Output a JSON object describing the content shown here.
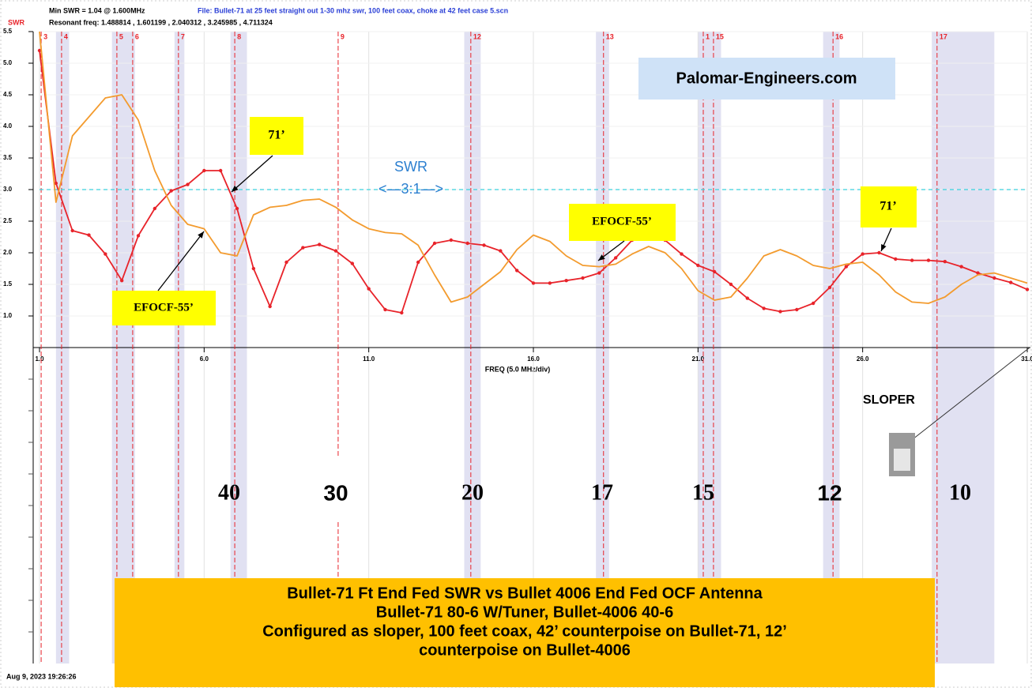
{
  "chart_data": {
    "type": "line",
    "min_swr": "Min SWR =  1.04 @  1.600MHz",
    "file": "File: Bullet-71 at 25 feet straight out 1-30 mhz swr, 100 feet coax, choke at 42 feet case 5.scn",
    "resonant": "Resonant freq:  1.488814 , 1.601199 , 2.040312 , 3.245985 , 4.711324",
    "y_label": "SWR",
    "x_label": "FREQ (5.0 MHz/div)",
    "timestamp": "Aug 9, 2023  19:26:26",
    "title_lines": [
      "Bullet-71 Ft End Fed SWR vs Bullet 4006 End Fed OCF Antenna",
      "Bullet-71 80-6 W/Tuner, Bullet-4006 40-6",
      "Configured as sloper, 100 feet coax, 42’ counterpoise on Bullet-71, 12’",
      "counterpoise on Bullet-4006"
    ],
    "annotations": [
      "Palomar-Engineers.com",
      "SWR",
      "<—3:1—>",
      "71’",
      "EFOCF-55’",
      "EFOCF-55’",
      "71’",
      "SLOPER"
    ],
    "band_labels": [
      "40",
      "30",
      "20",
      "17",
      "15",
      "12",
      "10"
    ],
    "xlim": [
      1,
      31
    ],
    "ylim": [
      0.5,
      5.5
    ],
    "xticks": [
      {
        "value": 1,
        "label": "1.0"
      },
      {
        "value": 6,
        "label": "6.0"
      },
      {
        "value": 11,
        "label": "11.0"
      },
      {
        "value": 16,
        "label": "16.0"
      },
      {
        "value": 21,
        "label": "21.0"
      },
      {
        "value": 26,
        "label": "26.0"
      },
      {
        "value": 31,
        "label": "31.0"
      }
    ],
    "yticks": [
      {
        "value": 1,
        "label": "1.0"
      },
      1.5,
      {
        "value": 2,
        "label": "2.0"
      },
      2.5,
      {
        "value": 3,
        "label": "3.0"
      },
      3.5,
      {
        "value": 4,
        "label": "4.0"
      },
      4.5,
      {
        "value": 5,
        "label": "5.0"
      },
      5.5
    ],
    "grid": true,
    "reference_line": 3,
    "markers": [
      {
        "label": "3",
        "x": 1.05
      },
      {
        "label": "4",
        "x": 1.67
      },
      {
        "label": "5",
        "x": 3.35
      },
      {
        "label": "6",
        "x": 3.83
      },
      {
        "label": "7",
        "x": 5.22
      },
      {
        "label": "8",
        "x": 6.93
      },
      {
        "label": "9",
        "x": 10.07
      },
      {
        "label": "12",
        "x": 14.1
      },
      {
        "label": "13",
        "x": 18.13
      },
      {
        "label": "1",
        "x": 21.16
      },
      {
        "label": "15",
        "x": 21.47
      },
      {
        "label": "16",
        "x": 25.1
      },
      {
        "label": "17",
        "x": 28.26
      }
    ],
    "shaded_ranges": [
      [
        1.5,
        1.9
      ],
      [
        3.2,
        3.9
      ],
      [
        5.1,
        5.4
      ],
      [
        6.8,
        7.3
      ],
      [
        13.9,
        14.4
      ],
      [
        17.9,
        18.3
      ],
      [
        21.0,
        21.7
      ],
      [
        24.8,
        25.3
      ],
      [
        28.1,
        30.0
      ]
    ],
    "x": [
      1,
      1.5,
      2,
      2.5,
      3,
      3.5,
      4,
      4.5,
      5,
      5.5,
      6,
      6.5,
      7,
      7.5,
      8,
      8.5,
      9,
      9.5,
      10,
      10.5,
      11,
      11.5,
      12,
      12.5,
      13,
      13.5,
      14,
      14.5,
      15,
      15.5,
      16,
      16.5,
      17,
      17.5,
      18,
      18.5,
      19,
      19.5,
      20,
      20.5,
      21,
      21.5,
      22,
      22.5,
      23,
      23.5,
      24,
      24.5,
      25,
      25.5,
      26,
      26.5,
      27,
      27.5,
      28,
      28.5,
      29,
      29.5,
      30,
      30.5,
      31
    ],
    "series": [
      {
        "color": "#e8232a",
        "dots": true,
        "values": [
          5.2,
          3.1,
          2.35,
          2.28,
          1.98,
          1.56,
          2.27,
          2.7,
          2.98,
          3.08,
          3.3,
          3.3,
          2.7,
          1.75,
          1.15,
          1.85,
          2.08,
          2.13,
          2.03,
          1.83,
          1.43,
          1.1,
          1.05,
          1.85,
          2.15,
          2.2,
          2.15,
          2.12,
          2.03,
          1.72,
          1.52,
          1.52,
          1.56,
          1.6,
          1.68,
          1.92,
          2.2,
          2.35,
          2.2,
          1.98,
          1.8,
          1.7,
          1.5,
          1.28,
          1.12,
          1.07,
          1.1,
          1.2,
          1.45,
          1.78,
          1.98,
          2.0,
          1.9,
          1.88,
          1.88,
          1.86,
          1.78,
          1.68,
          1.6,
          1.53,
          1.42
        ]
      },
      {
        "color": "#f39b2e",
        "dots": false,
        "values": [
          5.5,
          2.8,
          3.85,
          4.15,
          4.45,
          4.5,
          4.1,
          3.3,
          2.75,
          2.45,
          2.38,
          2.0,
          1.95,
          2.6,
          2.72,
          2.75,
          2.83,
          2.85,
          2.72,
          2.52,
          2.38,
          2.32,
          2.3,
          2.12,
          1.65,
          1.22,
          1.3,
          1.5,
          1.7,
          2.05,
          2.28,
          2.18,
          1.95,
          1.8,
          1.78,
          1.82,
          1.98,
          2.1,
          2.0,
          1.75,
          1.4,
          1.25,
          1.3,
          1.6,
          1.95,
          2.05,
          1.95,
          1.8,
          1.75,
          1.82,
          1.85,
          1.65,
          1.38,
          1.22,
          1.2,
          1.3,
          1.5,
          1.65,
          1.68,
          1.6,
          1.52
        ]
      }
    ]
  }
}
